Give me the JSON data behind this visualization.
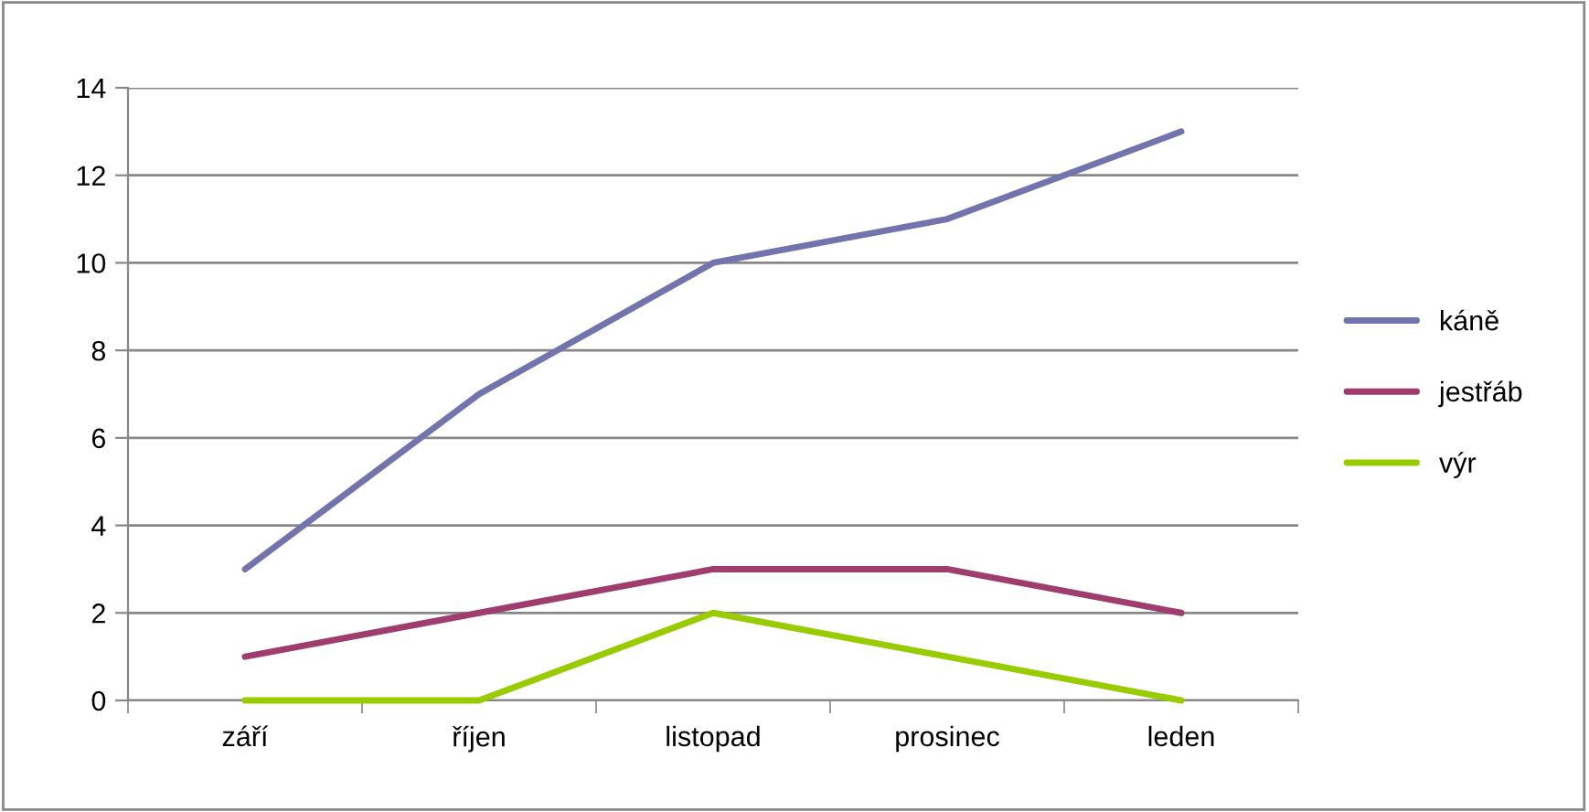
{
  "chart_data": {
    "type": "line",
    "categories": [
      "září",
      "říjen",
      "listopad",
      "prosinec",
      "leden"
    ],
    "series": [
      {
        "name": "káně",
        "color": "#7373ad",
        "values": [
          3,
          7,
          10,
          11,
          13
        ]
      },
      {
        "name": "jestřáb",
        "color": "#9e3d6e",
        "values": [
          1,
          2,
          3,
          3,
          2
        ]
      },
      {
        "name": "výr",
        "color": "#99cc00",
        "values": [
          0,
          0,
          2,
          1,
          0
        ]
      }
    ],
    "ylim": [
      0,
      14
    ],
    "yticks": [
      0,
      2,
      4,
      6,
      8,
      10,
      12,
      14
    ],
    "grid": "y",
    "legend": "right",
    "marker": "none",
    "line_style": "solid"
  }
}
